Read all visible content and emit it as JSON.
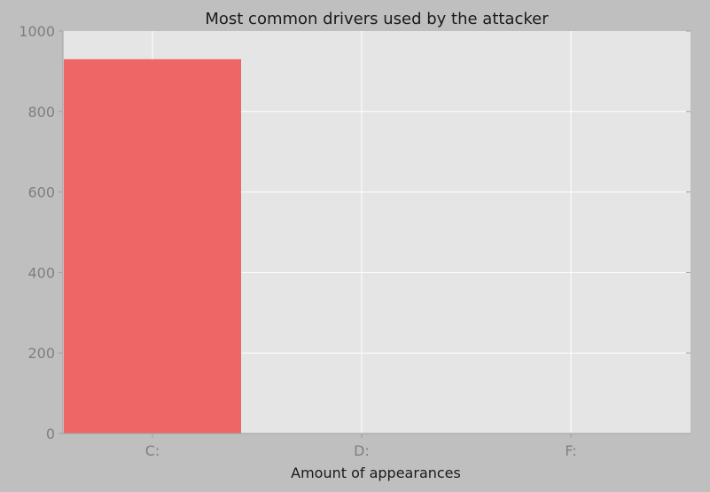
{
  "chart_data": {
    "type": "bar",
    "title": "Most common drivers used by the attacker",
    "xlabel": "Amount of appearances",
    "ylabel": "",
    "categories": [
      "C:",
      "D:",
      "F:"
    ],
    "values": [
      930,
      0,
      0
    ],
    "ylim": [
      0,
      1000
    ],
    "yticks": [
      0,
      200,
      400,
      600,
      800,
      1000
    ],
    "grid": true,
    "colors": {
      "bar": "#ee6666",
      "plot_background": "#e5e5e5",
      "figure_background": "#bfbfbf",
      "grid": "#ffffff",
      "tick_label": "#7f7f7f",
      "text": "#1a1a1a"
    }
  }
}
